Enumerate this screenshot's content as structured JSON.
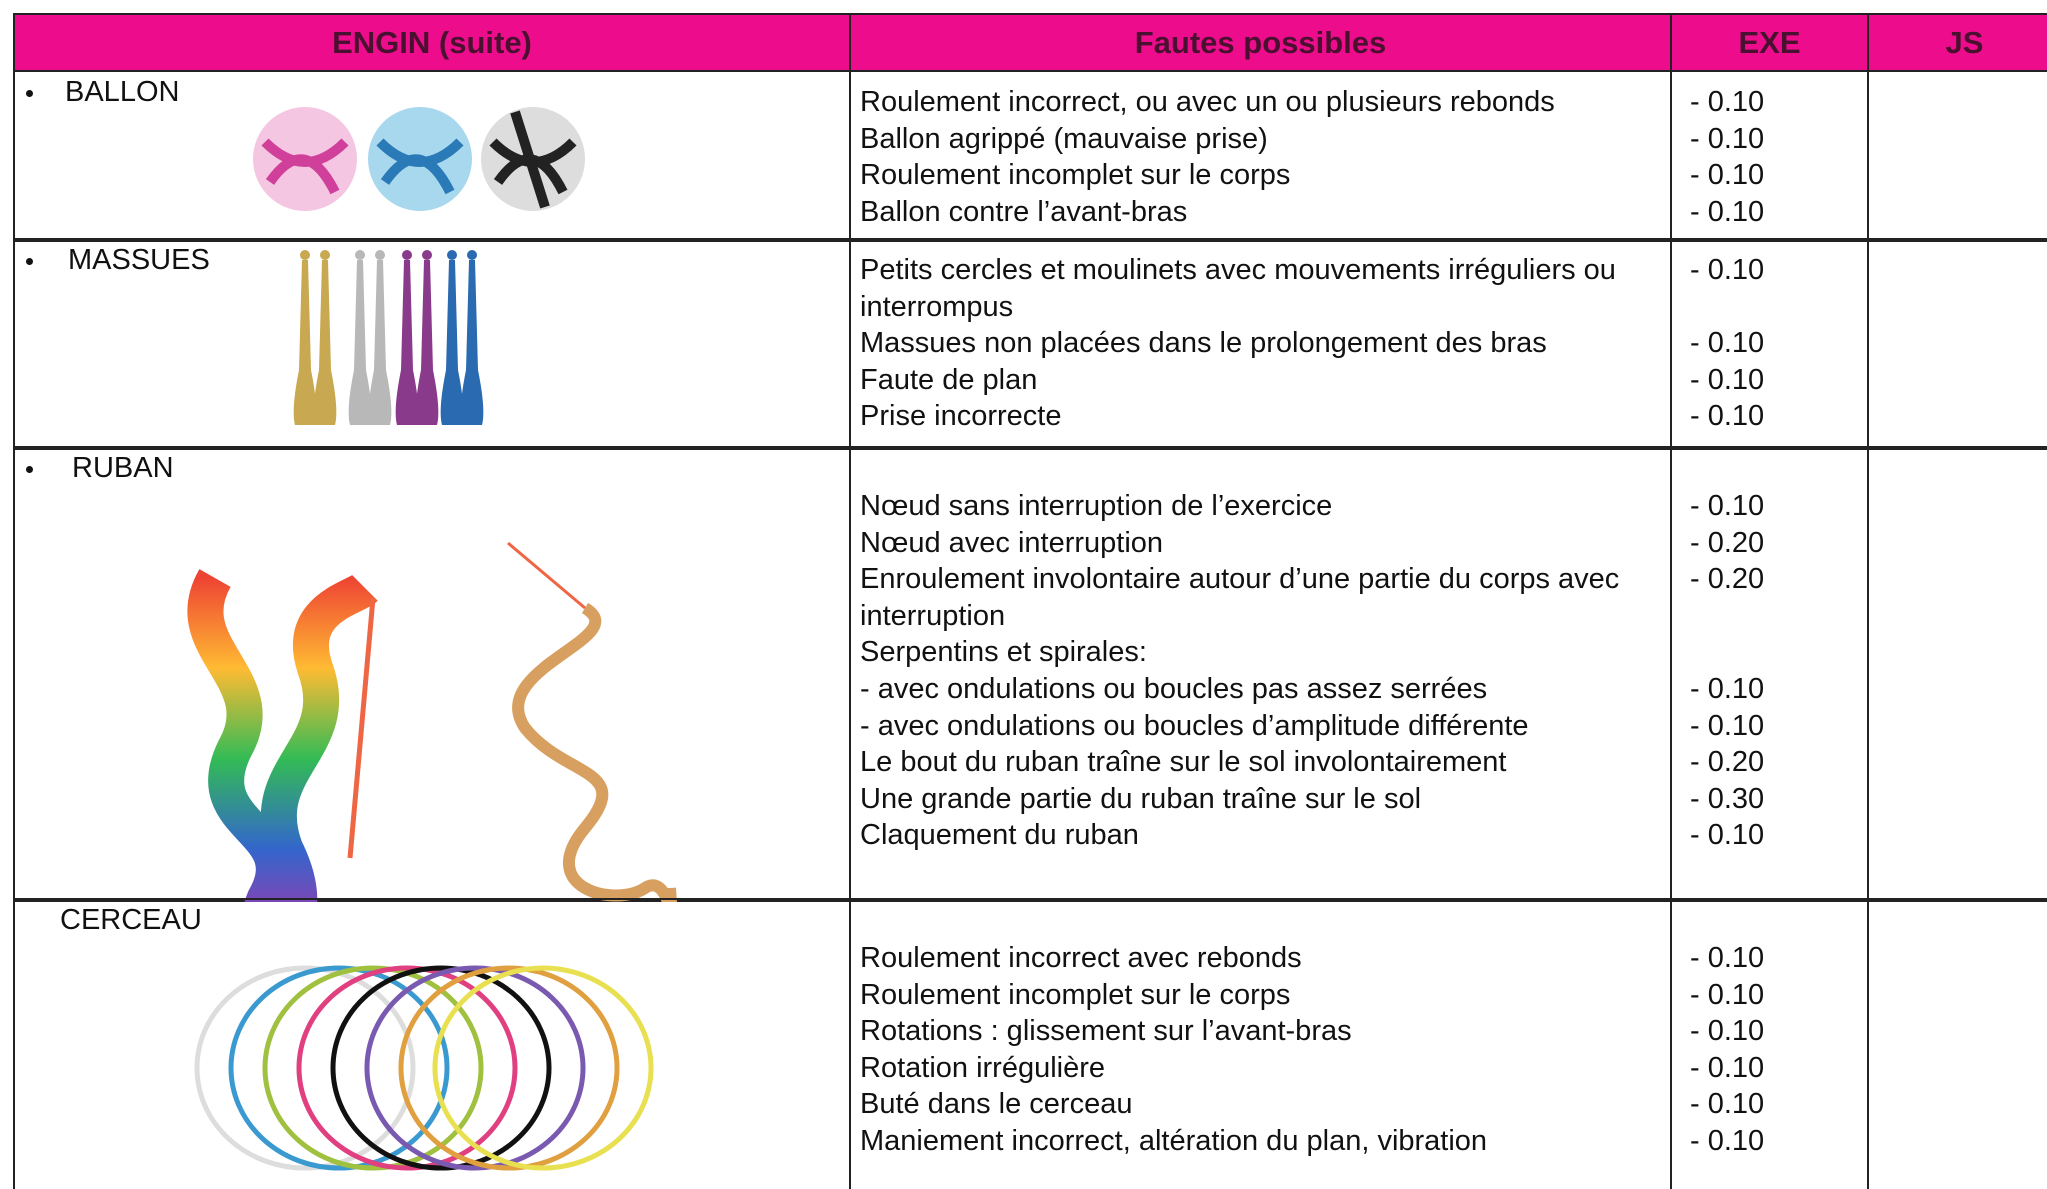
{
  "table": {
    "header": [
      "ENGIN (suite)",
      "Fautes possibles",
      "EXE",
      "JS"
    ],
    "rows": [
      {
        "engin": "BALLON",
        "items": [
          {
            "text": "Roulement incorrect, ou avec un ou plusieurs rebonds",
            "exe": "- 0.10"
          },
          {
            "text": "Ballon agrippé (mauvaise prise)",
            "exe": "- 0.10"
          },
          {
            "text": "Roulement incomplet sur le corps",
            "exe": "- 0.10"
          },
          {
            "text": "Ballon contre l’avant-bras",
            "exe": "- 0.10"
          }
        ]
      },
      {
        "engin": "MASSUES",
        "items": [
          {
            "text": "Petits cercles et moulinets avec mouvements irréguliers ou interrompus",
            "exe": "- 0.10"
          },
          {
            "text": "Massues non placées dans le prolongement des bras",
            "exe": "- 0.10"
          },
          {
            "text": "Faute de plan",
            "exe": "- 0.10"
          },
          {
            "text": "Prise incorrecte",
            "exe": "- 0.10"
          }
        ]
      },
      {
        "engin": "RUBAN",
        "items": [
          {
            "text": "Nœud sans interruption de l’exercice",
            "exe": "- 0.10"
          },
          {
            "text": "Nœud avec interruption",
            "exe": "- 0.20"
          },
          {
            "text": "Enroulement involontaire autour d’une partie du corps avec interruption",
            "exe": "- 0.20"
          },
          {
            "text": "Serpentins et spirales:"
          },
          {
            "text": "- avec ondulations ou boucles pas assez serrées",
            "exe": "- 0.10"
          },
          {
            "text": "- avec ondulations ou boucles d’amplitude différente",
            "exe": "- 0.10"
          },
          {
            "text": "Le bout du ruban traîne sur le sol involontairement",
            "exe": "- 0.20"
          },
          {
            "text": "Une grande partie du ruban traîne sur le sol",
            "exe": "- 0.30"
          },
          {
            "text": "Claquement du ruban",
            "exe": "- 0.10"
          }
        ]
      },
      {
        "engin": "CERCEAU",
        "items": [
          {
            "text": "Roulement incorrect avec rebonds",
            "exe": "- 0.10"
          },
          {
            "text": "Roulement incomplet sur le corps",
            "exe": "- 0.10"
          },
          {
            "text": "Rotations : glissement sur l’avant-bras",
            "exe": "- 0.10"
          },
          {
            "text": "Rotation irrégulière",
            "exe": "- 0.10"
          },
          {
            "text": "Buté dans le cerceau",
            "exe": "- 0.10"
          },
          {
            "text": "Maniement incorrect, altération du plan, vibration",
            "exe": "- 0.10"
          }
        ]
      }
    ]
  }
}
